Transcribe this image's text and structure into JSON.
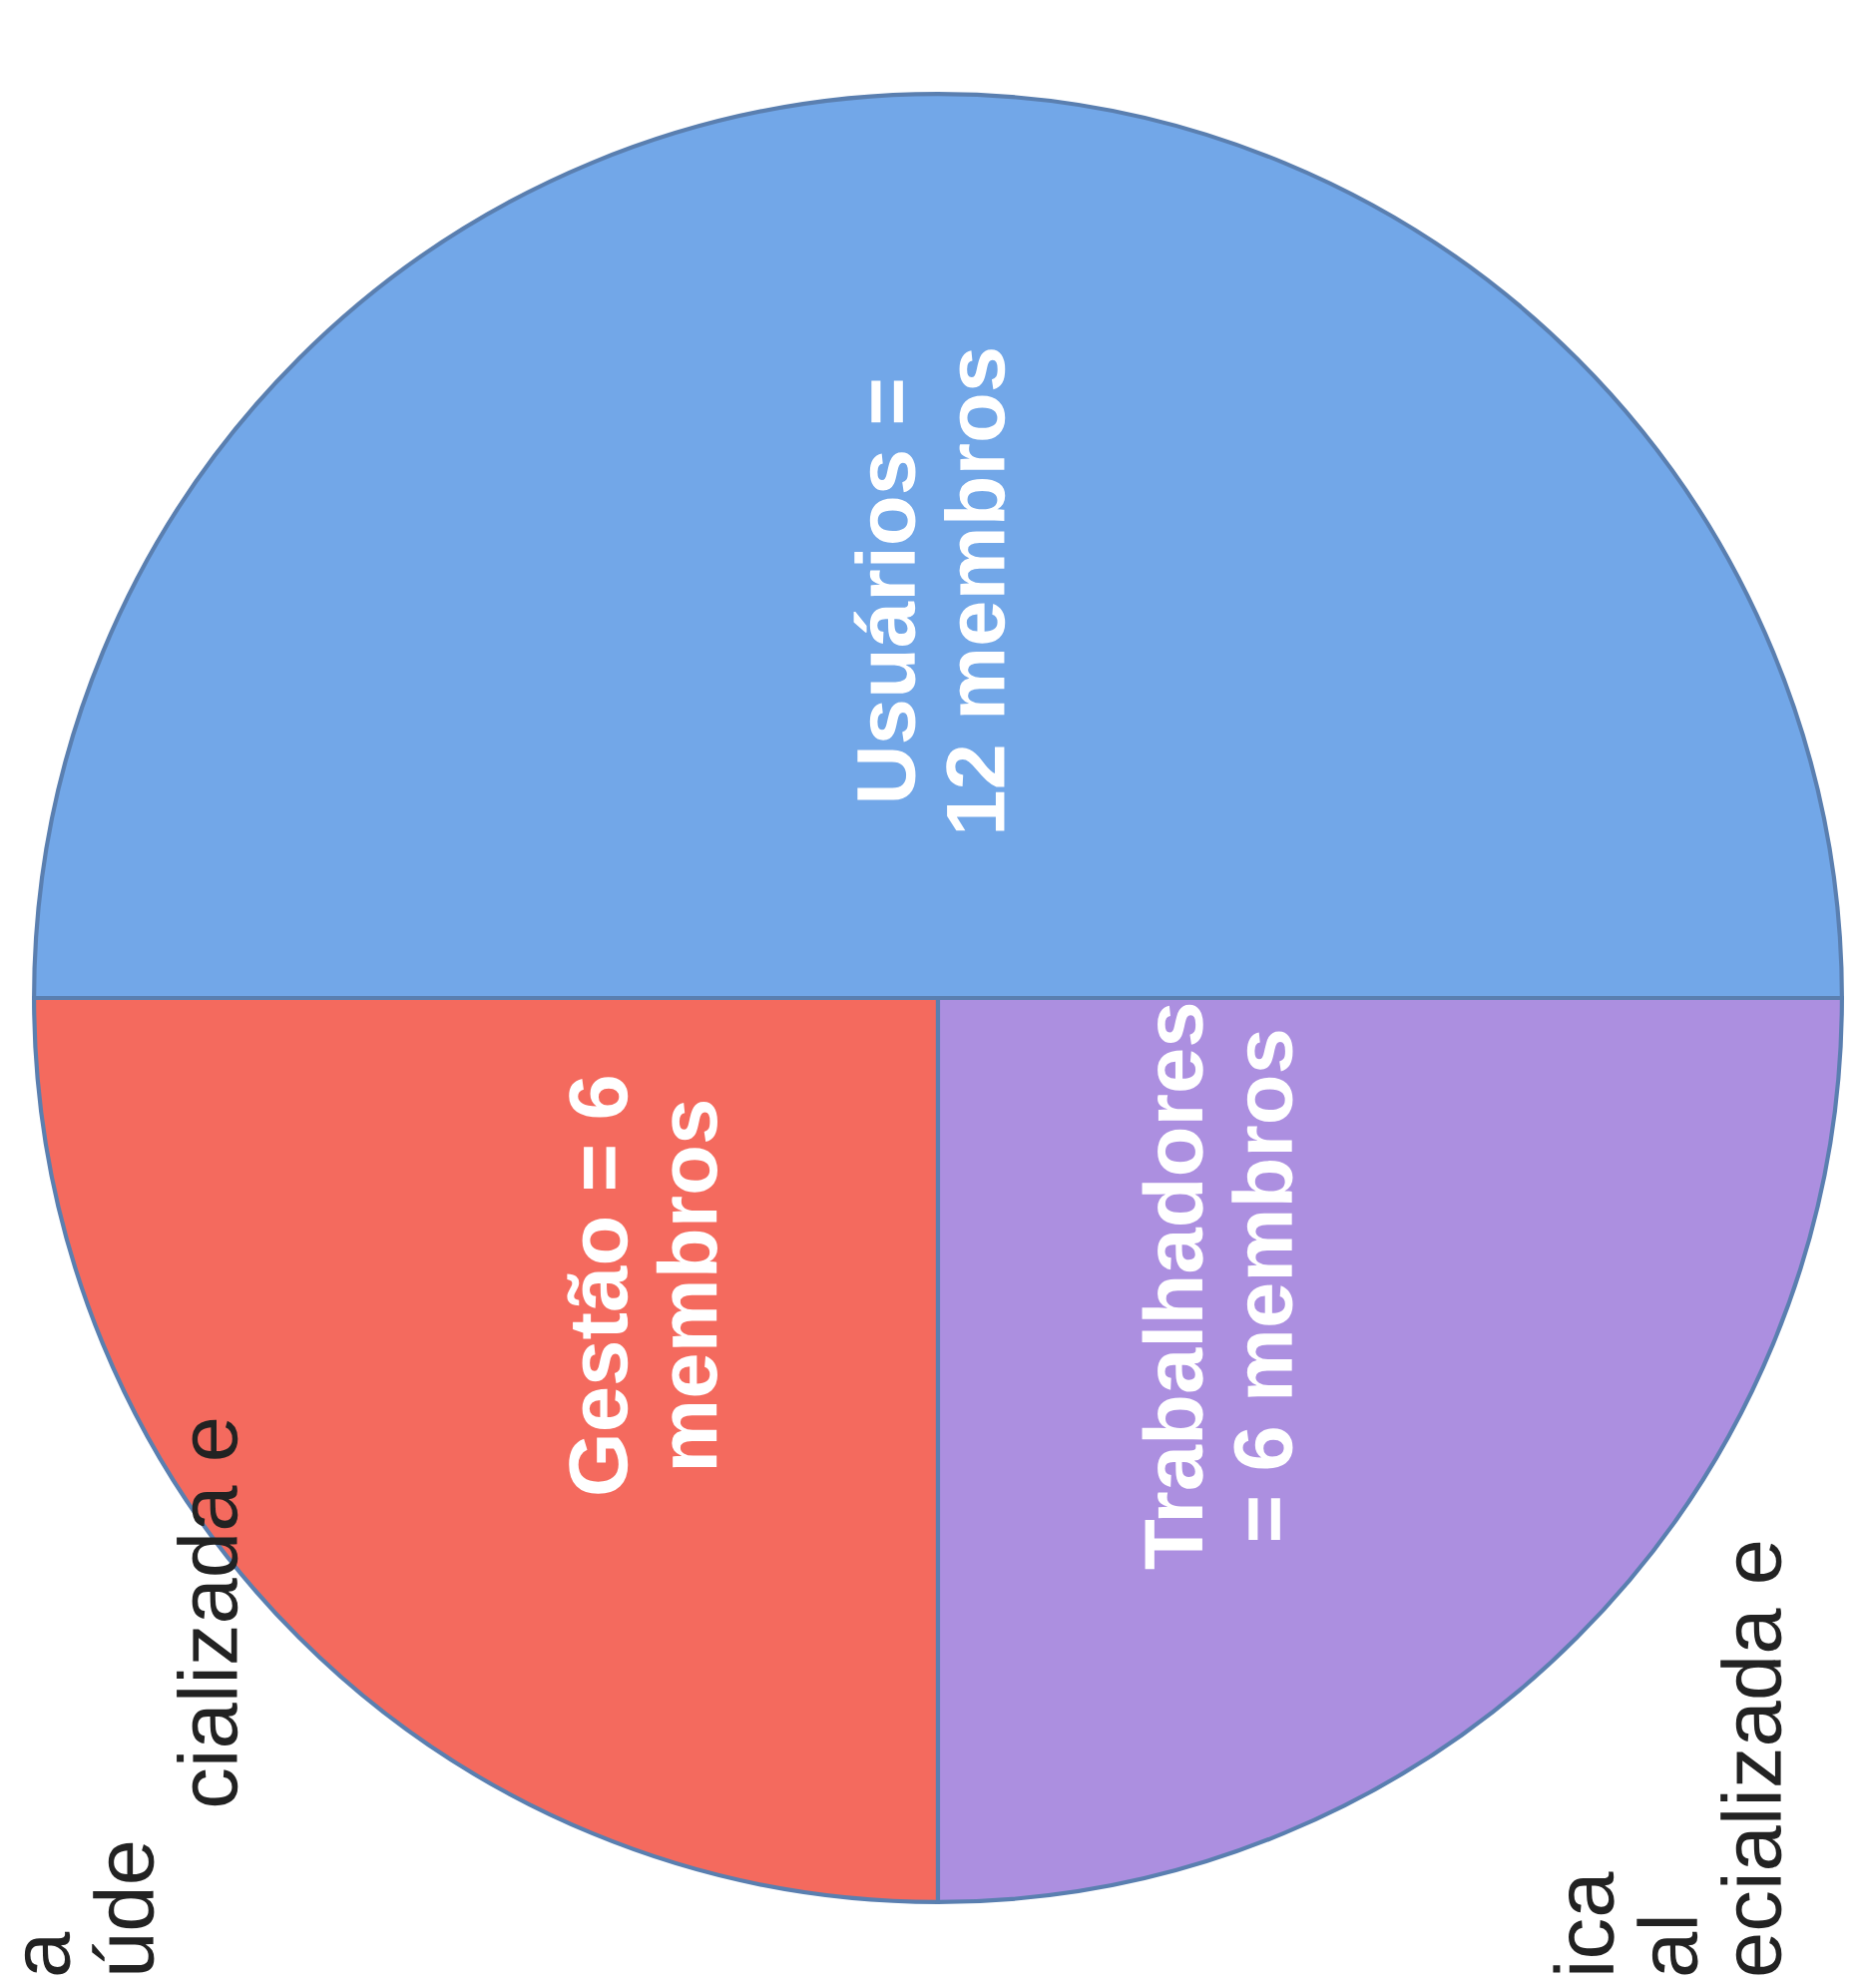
{
  "chart_data": {
    "type": "pie",
    "categories": [
      "Usuários =\n12 membros",
      "Gestão = 6\nmembros",
      "Trabalhadores\n= 6 membros"
    ],
    "values": [
      12,
      6,
      6
    ],
    "colors": [
      "#72a7e8",
      "#f46a5e",
      "#ac8fe0"
    ],
    "annotations": [
      "a",
      "úde",
      "cializada e",
      "ica",
      "al",
      "ecializada e"
    ]
  }
}
